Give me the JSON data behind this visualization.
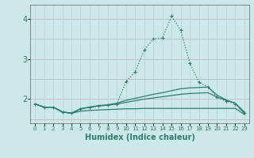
{
  "x": [
    0,
    1,
    2,
    3,
    4,
    5,
    6,
    7,
    8,
    9,
    10,
    11,
    12,
    13,
    14,
    15,
    16,
    17,
    18,
    19,
    20,
    21,
    22,
    23
  ],
  "line1": [
    1.88,
    1.8,
    1.8,
    1.68,
    1.65,
    1.76,
    1.8,
    1.83,
    1.85,
    1.88,
    2.44,
    2.68,
    3.22,
    3.5,
    3.52,
    4.07,
    3.72,
    2.9,
    2.42,
    2.3,
    2.05,
    1.95,
    1.88,
    1.65
  ],
  "line2": [
    1.88,
    1.8,
    1.8,
    1.68,
    1.65,
    1.76,
    1.8,
    1.84,
    1.86,
    1.9,
    1.97,
    2.02,
    2.07,
    2.12,
    2.16,
    2.21,
    2.26,
    2.28,
    2.29,
    2.3,
    2.1,
    1.98,
    1.9,
    1.65
  ],
  "line3": [
    1.88,
    1.8,
    1.8,
    1.68,
    1.65,
    1.76,
    1.8,
    1.83,
    1.85,
    1.88,
    1.92,
    1.96,
    2.0,
    2.03,
    2.06,
    2.09,
    2.12,
    2.14,
    2.15,
    2.16,
    2.05,
    1.97,
    1.9,
    1.68
  ],
  "line4": [
    1.88,
    1.8,
    1.8,
    1.68,
    1.65,
    1.7,
    1.72,
    1.73,
    1.74,
    1.75,
    1.76,
    1.76,
    1.77,
    1.77,
    1.77,
    1.77,
    1.77,
    1.77,
    1.77,
    1.77,
    1.77,
    1.77,
    1.77,
    1.62
  ],
  "line_color": "#2e7d6e",
  "bg_color": "#cce8e8",
  "grid_color_h": "#c8b8b8",
  "grid_color_v": "#b8d4d4",
  "xlabel": "Humidex (Indice chaleur)",
  "yticks": [
    2,
    3,
    4
  ],
  "ylim": [
    1.4,
    4.35
  ],
  "xlim": [
    -0.5,
    23.5
  ]
}
